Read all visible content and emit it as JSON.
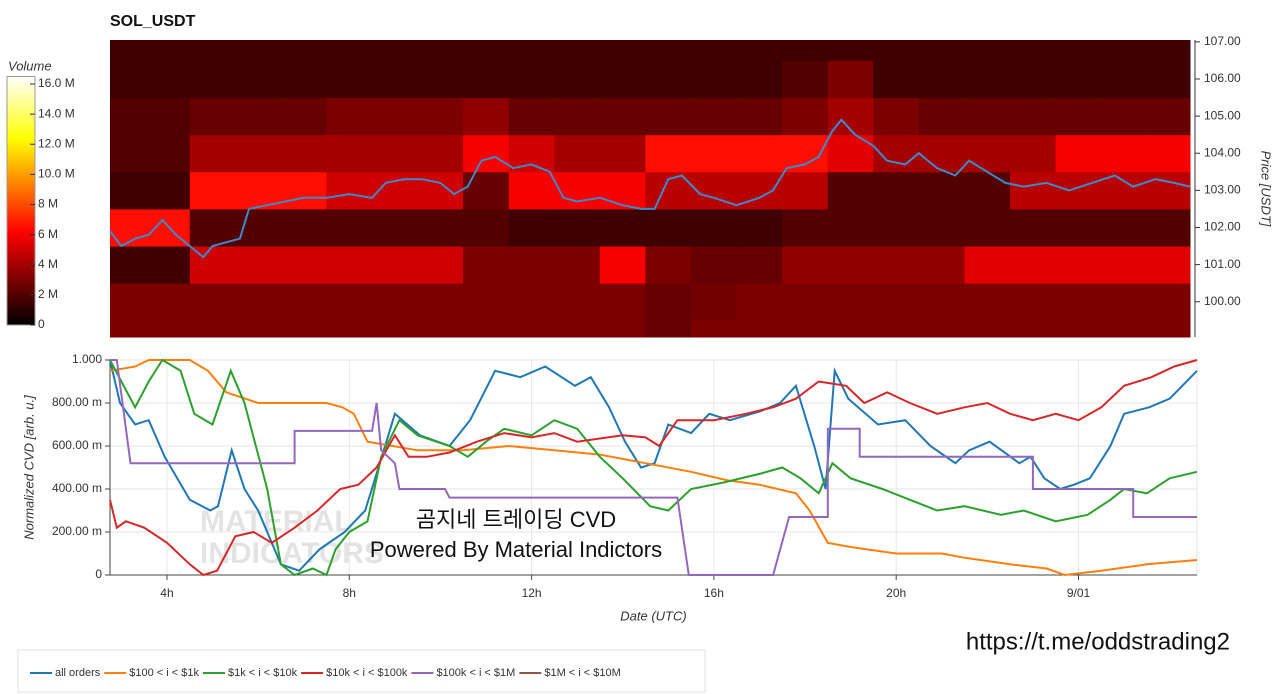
{
  "chart_data": [
    {
      "type": "heatmap",
      "title": "SOL_USDT",
      "x_edges": [
        2.75,
        3.5,
        4.5,
        5.5,
        6.5,
        7.5,
        8.5,
        9.5,
        10.5,
        11.5,
        12.5,
        13.5,
        14.5,
        15.5,
        16.5,
        17.5,
        18.5,
        19.5,
        20.5,
        21.5,
        22.5,
        23.5,
        24.5,
        25.5,
        26.45
      ],
      "y_edges": [
        99.05,
        99.5,
        100.5,
        101.5,
        102.5,
        103.5,
        104.5,
        105.5,
        106.5,
        107.05
      ],
      "values": [
        [
          3,
          3,
          3,
          3,
          3,
          3,
          3,
          3,
          3,
          3,
          3,
          3,
          2.5,
          3,
          3,
          3,
          3,
          3,
          3,
          3,
          3,
          3,
          3,
          3
        ],
        [
          3,
          3,
          3,
          3,
          3,
          3,
          3,
          3,
          3,
          3,
          3,
          3,
          2.5,
          2.8,
          3,
          3,
          3,
          3,
          3,
          3,
          3,
          3,
          3,
          3
        ],
        [
          1.5,
          1.5,
          5,
          5,
          5,
          5,
          5,
          5,
          3,
          3,
          3,
          6,
          3,
          2.5,
          2.5,
          3.5,
          3.5,
          3.5,
          3.5,
          5.5,
          5.5,
          5.5,
          5.5,
          5.5
        ],
        [
          6.5,
          6.5,
          2,
          2,
          2,
          2,
          2,
          2,
          2,
          1.5,
          1.5,
          1.5,
          1.5,
          1.5,
          1.5,
          2,
          2,
          2,
          2,
          2,
          2,
          2,
          2,
          2
        ],
        [
          1.5,
          1.5,
          6.5,
          6.5,
          6.5,
          5,
          5,
          5,
          2.5,
          6,
          6,
          6,
          4.5,
          4.5,
          4.5,
          4.5,
          2,
          2,
          2,
          2,
          4.5,
          4.5,
          4.5,
          4.5
        ],
        [
          2,
          2,
          4,
          4,
          4,
          4,
          4,
          4,
          6,
          5,
          4,
          4,
          6.5,
          6.5,
          6.5,
          6.5,
          5.5,
          4,
          4,
          4,
          4,
          6,
          6,
          6
        ],
        [
          2,
          2,
          2.5,
          2.5,
          2.5,
          3,
          3,
          3,
          3.5,
          2.5,
          2.5,
          2.5,
          2.5,
          2.5,
          2.5,
          3,
          4,
          3,
          2.5,
          2.5,
          2.5,
          2.5,
          2.5,
          2.5
        ],
        [
          1.5,
          1.5,
          1.5,
          1.5,
          1.5,
          1.5,
          1.5,
          1.5,
          1.5,
          1.5,
          1.5,
          1.5,
          1.5,
          1.5,
          1.5,
          2,
          3,
          1.5,
          1.5,
          1.5,
          1.5,
          1.5,
          1.5,
          1.5
        ],
        [
          1.5,
          1.5,
          1.5,
          1.5,
          1.5,
          1.5,
          1.5,
          1.5,
          1.5,
          1.5,
          1.5,
          1.5,
          1.5,
          1.5,
          1.5,
          1.5,
          1.5,
          1.5,
          1.5,
          1.5,
          1.5,
          1.5,
          1.5,
          1.5
        ]
      ],
      "colormap": "hot",
      "colorbar": {
        "title": "Volume",
        "lim": [
          0,
          16.5
        ],
        "ticks": [
          0,
          {
            "value": 2,
            "label": "2 M"
          },
          {
            "value": 4,
            "label": "4 M"
          },
          {
            "value": 6,
            "label": "6 M"
          },
          {
            "value": 8,
            "label": "8 M"
          },
          {
            "value": 10,
            "label": "10.0 M"
          },
          {
            "value": 12,
            "label": "12.0 M"
          },
          {
            "value": 14,
            "label": "14.0 M"
          },
          {
            "value": 16,
            "label": "16.0 M"
          }
        ]
      },
      "xlim": [
        2.75,
        26.45
      ],
      "ylim": [
        99.05,
        107.05
      ],
      "y_label": "Price [USDT]",
      "yticks": [
        {
          "value": 100,
          "label": "100.00"
        },
        {
          "value": 101,
          "label": "101.00"
        },
        {
          "value": 102,
          "label": "102.00"
        },
        {
          "value": 103,
          "label": "103.00"
        },
        {
          "value": 104,
          "label": "104.00"
        },
        {
          "value": 105,
          "label": "105.00"
        },
        {
          "value": 106,
          "label": "106.00"
        },
        {
          "value": 107,
          "label": "107.00"
        }
      ],
      "series": [
        {
          "color": "#3d8ac9",
          "x": [
            2.75,
            3.0,
            3.3,
            3.6,
            3.9,
            4.2,
            4.5,
            4.8,
            5.0,
            5.3,
            5.6,
            5.8,
            6.2,
            6.6,
            7.0,
            7.5,
            8.0,
            8.5,
            8.8,
            9.2,
            9.6,
            10.0,
            10.3,
            10.6,
            10.9,
            11.2,
            11.6,
            12.0,
            12.4,
            12.7,
            13.0,
            13.5,
            14.0,
            14.4,
            14.7,
            15.0,
            15.3,
            15.7,
            16.0,
            16.5,
            17.0,
            17.3,
            17.6,
            18.0,
            18.3,
            18.6,
            18.8,
            19.1,
            19.5,
            19.8,
            20.2,
            20.5,
            20.9,
            21.3,
            21.6,
            22.0,
            22.4,
            22.8,
            23.3,
            23.8,
            24.3,
            24.8,
            25.2,
            25.7,
            26.1,
            26.45
          ],
          "values": [
            101.9,
            101.5,
            101.7,
            101.8,
            102.2,
            101.8,
            101.5,
            101.2,
            101.5,
            101.6,
            101.7,
            102.5,
            102.6,
            102.7,
            102.8,
            102.8,
            102.9,
            102.8,
            103.2,
            103.3,
            103.3,
            103.2,
            102.9,
            103.1,
            103.8,
            103.9,
            103.6,
            103.7,
            103.5,
            102.8,
            102.7,
            102.8,
            102.6,
            102.5,
            102.5,
            103.3,
            103.4,
            102.9,
            102.8,
            102.6,
            102.8,
            103.0,
            103.6,
            103.7,
            103.9,
            104.6,
            104.9,
            104.5,
            104.2,
            103.8,
            103.7,
            104.0,
            103.6,
            103.4,
            103.8,
            103.5,
            103.2,
            103.1,
            103.2,
            103.0,
            103.2,
            103.4,
            103.1,
            103.3,
            103.2,
            103.1
          ]
        }
      ]
    },
    {
      "type": "line",
      "x_label": "Date (UTC)",
      "y_label": "Normalized CVD [arb. u.]",
      "xlim": [
        2.75,
        26.6
      ],
      "ylim": [
        0,
        1
      ],
      "xticks": [
        {
          "value": 4,
          "label": "4h"
        },
        {
          "value": 8,
          "label": "8h"
        },
        {
          "value": 12,
          "label": "12h"
        },
        {
          "value": 16,
          "label": "16h"
        },
        {
          "value": 20,
          "label": "20h"
        },
        {
          "value": 24,
          "label": "9/01"
        }
      ],
      "yticks": [
        0,
        {
          "value": 0.2,
          "label": "200.00 m"
        },
        {
          "value": 0.4,
          "label": "400.00 m"
        },
        {
          "value": 0.6,
          "label": "600.00 m"
        },
        {
          "value": 0.8,
          "label": "800.00 m"
        },
        {
          "value": 1,
          "label": "1.000"
        }
      ],
      "grid": true,
      "legend": "bottom-left",
      "watermark": [
        "MATERIAL",
        "INDICATORS"
      ],
      "annotations": [
        "곰지네 트레이딩 CVD",
        "Powered By Material Indictors"
      ],
      "series": [
        {
          "name": "all orders",
          "color": "#1f77b4",
          "x": [
            2.75,
            2.97,
            3.3,
            3.6,
            3.95,
            4.5,
            4.95,
            5.12,
            5.42,
            5.7,
            6.0,
            6.5,
            6.9,
            7.35,
            7.9,
            8.35,
            8.67,
            9.0,
            9.55,
            10.2,
            10.65,
            11.2,
            11.75,
            12.3,
            12.95,
            13.3,
            13.7,
            14.05,
            14.4,
            14.7,
            15.0,
            15.5,
            15.9,
            16.35,
            17.0,
            17.45,
            17.8,
            18.2,
            18.45,
            18.65,
            18.95,
            19.6,
            20.2,
            20.75,
            21.3,
            21.6,
            22.05,
            22.7,
            22.95,
            23.25,
            23.6,
            23.9,
            24.25,
            24.7,
            25.0,
            25.55,
            26.0,
            26.6
          ],
          "values": [
            1.0,
            0.8,
            0.7,
            0.72,
            0.55,
            0.35,
            0.3,
            0.32,
            0.58,
            0.4,
            0.3,
            0.05,
            0.02,
            0.12,
            0.2,
            0.3,
            0.52,
            0.75,
            0.65,
            0.6,
            0.72,
            0.95,
            0.92,
            0.97,
            0.88,
            0.92,
            0.78,
            0.62,
            0.5,
            0.52,
            0.7,
            0.66,
            0.75,
            0.72,
            0.76,
            0.8,
            0.88,
            0.6,
            0.4,
            0.95,
            0.82,
            0.7,
            0.72,
            0.6,
            0.52,
            0.58,
            0.62,
            0.52,
            0.55,
            0.45,
            0.4,
            0.42,
            0.45,
            0.6,
            0.75,
            0.78,
            0.82,
            0.95
          ]
        },
        {
          "name": "$100 < i < $1k",
          "color": "#ff7f0e",
          "x": [
            2.75,
            3.3,
            3.6,
            4.5,
            4.9,
            5.3,
            6.0,
            6.8,
            7.5,
            7.85,
            8.1,
            8.4,
            9.5,
            10.5,
            11.5,
            12.5,
            13.5,
            14.5,
            15.5,
            16.3,
            17.0,
            17.8,
            18.1,
            18.5,
            19.0,
            20.0,
            21.0,
            21.5,
            22.5,
            23.3,
            23.7,
            24.5,
            25.5,
            26.6
          ],
          "values": [
            0.95,
            0.97,
            1.0,
            1.0,
            0.95,
            0.85,
            0.8,
            0.8,
            0.8,
            0.78,
            0.75,
            0.62,
            0.58,
            0.58,
            0.6,
            0.58,
            0.56,
            0.52,
            0.48,
            0.44,
            0.42,
            0.38,
            0.3,
            0.15,
            0.13,
            0.1,
            0.1,
            0.08,
            0.05,
            0.03,
            0.0,
            0.02,
            0.05,
            0.07
          ]
        },
        {
          "name": "$1k < i < $10k",
          "color": "#2ca02c",
          "x": [
            2.75,
            3.0,
            3.3,
            3.6,
            3.9,
            4.3,
            4.6,
            5.0,
            5.4,
            5.7,
            6.2,
            6.5,
            6.8,
            7.2,
            7.5,
            7.7,
            8.0,
            8.4,
            8.7,
            9.1,
            9.5,
            10.2,
            10.6,
            11.0,
            11.4,
            12.0,
            12.5,
            13.0,
            13.5,
            14.0,
            14.6,
            15.0,
            15.5,
            16.2,
            17.0,
            17.5,
            17.9,
            18.3,
            18.6,
            19.0,
            19.7,
            20.3,
            20.9,
            21.5,
            22.3,
            22.8,
            23.5,
            24.2,
            24.7,
            25.0,
            25.5,
            26.0,
            26.6
          ],
          "values": [
            1.0,
            0.9,
            0.78,
            0.9,
            1.0,
            0.95,
            0.75,
            0.7,
            0.95,
            0.8,
            0.4,
            0.05,
            0.0,
            0.03,
            0.0,
            0.12,
            0.2,
            0.25,
            0.55,
            0.72,
            0.65,
            0.6,
            0.55,
            0.62,
            0.68,
            0.65,
            0.72,
            0.68,
            0.55,
            0.45,
            0.32,
            0.3,
            0.4,
            0.43,
            0.47,
            0.5,
            0.45,
            0.38,
            0.52,
            0.45,
            0.4,
            0.35,
            0.3,
            0.32,
            0.28,
            0.3,
            0.25,
            0.28,
            0.35,
            0.4,
            0.38,
            0.45,
            0.48
          ]
        },
        {
          "name": "$10k < i < $100k",
          "color": "#d62728",
          "x": [
            2.75,
            2.9,
            3.1,
            3.5,
            4.0,
            4.5,
            4.8,
            5.1,
            5.5,
            5.9,
            6.3,
            6.8,
            7.3,
            7.8,
            8.2,
            8.6,
            9.0,
            9.3,
            9.7,
            10.2,
            10.8,
            11.4,
            12.0,
            12.5,
            13.0,
            14.0,
            14.5,
            14.8,
            15.2,
            16.0,
            16.7,
            17.3,
            17.8,
            18.3,
            18.9,
            19.3,
            19.8,
            20.3,
            20.9,
            21.5,
            22.0,
            22.5,
            23.0,
            23.5,
            24.0,
            24.5,
            25.0,
            25.6,
            26.1,
            26.6
          ],
          "values": [
            0.35,
            0.22,
            0.25,
            0.22,
            0.15,
            0.05,
            0.0,
            0.02,
            0.18,
            0.2,
            0.15,
            0.22,
            0.3,
            0.4,
            0.42,
            0.5,
            0.65,
            0.55,
            0.55,
            0.57,
            0.62,
            0.66,
            0.64,
            0.66,
            0.62,
            0.65,
            0.64,
            0.6,
            0.72,
            0.72,
            0.75,
            0.78,
            0.82,
            0.9,
            0.88,
            0.8,
            0.85,
            0.8,
            0.75,
            0.78,
            0.8,
            0.75,
            0.72,
            0.75,
            0.72,
            0.78,
            0.88,
            0.92,
            0.97,
            1.0
          ]
        },
        {
          "name": "$100k < i < $1M",
          "color": "#9467bd",
          "x": [
            2.75,
            2.9,
            3.2,
            6.8,
            6.8,
            8.5,
            8.6,
            8.7,
            9.0,
            9.1,
            10.1,
            10.2,
            15.2,
            15.45,
            17.3,
            17.65,
            18.5,
            18.5,
            19.2,
            19.2,
            23.0,
            23.0,
            25.2,
            25.2,
            26.6
          ],
          "values": [
            1.0,
            1.0,
            0.52,
            0.52,
            0.67,
            0.67,
            0.8,
            0.58,
            0.52,
            0.4,
            0.4,
            0.36,
            0.36,
            0.0,
            0.0,
            0.27,
            0.27,
            0.68,
            0.68,
            0.55,
            0.55,
            0.4,
            0.4,
            0.27,
            0.27
          ]
        },
        {
          "name": "$1M < i < $10M",
          "color": "#8c564b",
          "x": [],
          "values": []
        }
      ]
    }
  ],
  "link": "https://t.me/oddstrading2"
}
